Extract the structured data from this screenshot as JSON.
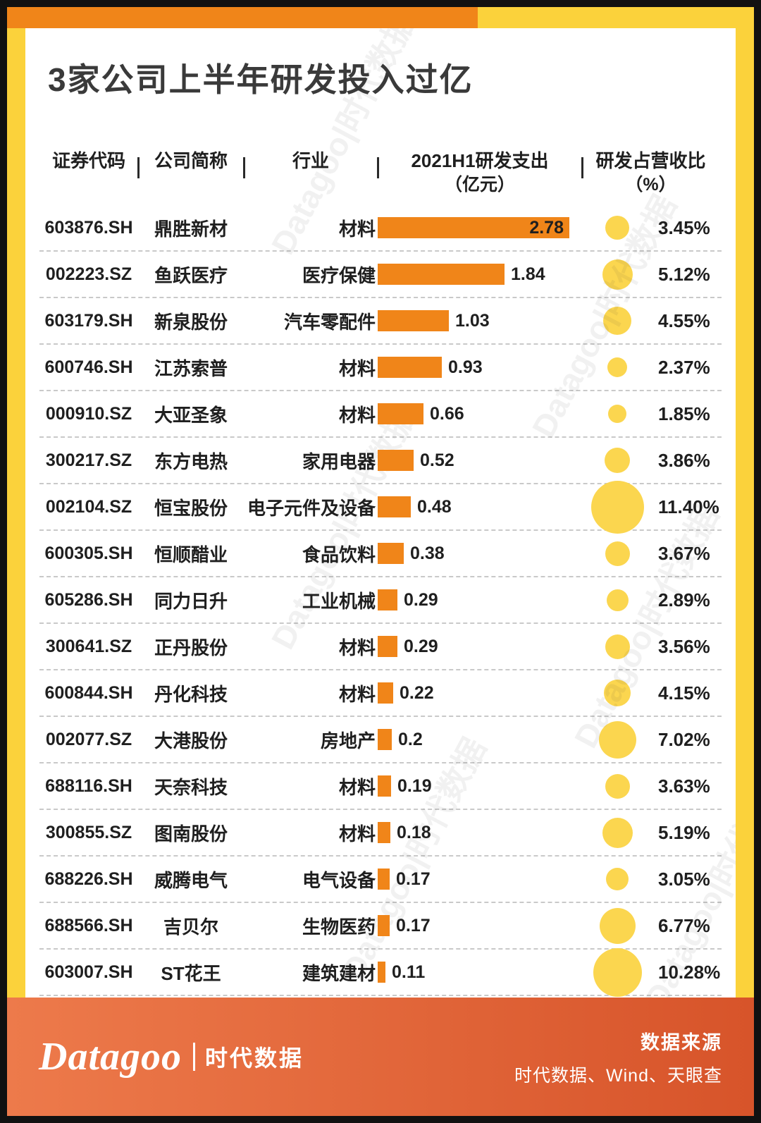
{
  "title": "3家公司上半年研发投入过亿",
  "watermark": {
    "text": "Datagoo|时代数据"
  },
  "columns": {
    "code": "证券代码",
    "name": "公司简称",
    "industry": "行业",
    "rd_line1": "2021H1研发支出",
    "rd_line2": "（亿元）",
    "ratio_line1": "研发占营收比",
    "ratio_line2": "（%）"
  },
  "chart_data": {
    "type": "bar",
    "title": "3家公司上半年研发投入过亿",
    "xlabel": "2021H1研发支出（亿元）",
    "ylabel": "",
    "xlim": [
      0,
      2.78
    ],
    "bar_color": "#F08519",
    "circle_color": "#FBD64F",
    "rows": [
      {
        "code": "603876.SH",
        "name": "鼎胜新材",
        "industry": "材料",
        "rd": 2.78,
        "rd_label": "2.78",
        "ratio": 3.45,
        "ratio_label": "3.45%"
      },
      {
        "code": "002223.SZ",
        "name": "鱼跃医疗",
        "industry": "医疗保健",
        "rd": 1.84,
        "rd_label": "1.84",
        "ratio": 5.12,
        "ratio_label": "5.12%"
      },
      {
        "code": "603179.SH",
        "name": "新泉股份",
        "industry": "汽车零配件",
        "rd": 1.03,
        "rd_label": "1.03",
        "ratio": 4.55,
        "ratio_label": "4.55%"
      },
      {
        "code": "600746.SH",
        "name": "江苏索普",
        "industry": "材料",
        "rd": 0.93,
        "rd_label": "0.93",
        "ratio": 2.37,
        "ratio_label": "2.37%"
      },
      {
        "code": "000910.SZ",
        "name": "大亚圣象",
        "industry": "材料",
        "rd": 0.66,
        "rd_label": "0.66",
        "ratio": 1.85,
        "ratio_label": "1.85%"
      },
      {
        "code": "300217.SZ",
        "name": "东方电热",
        "industry": "家用电器",
        "rd": 0.52,
        "rd_label": "0.52",
        "ratio": 3.86,
        "ratio_label": "3.86%"
      },
      {
        "code": "002104.SZ",
        "name": "恒宝股份",
        "industry": "电子元件及设备",
        "rd": 0.48,
        "rd_label": "0.48",
        "ratio": 11.4,
        "ratio_label": "11.40%"
      },
      {
        "code": "600305.SH",
        "name": "恒顺醋业",
        "industry": "食品饮料",
        "rd": 0.38,
        "rd_label": "0.38",
        "ratio": 3.67,
        "ratio_label": "3.67%"
      },
      {
        "code": "605286.SH",
        "name": "同力日升",
        "industry": "工业机械",
        "rd": 0.29,
        "rd_label": "0.29",
        "ratio": 2.89,
        "ratio_label": "2.89%"
      },
      {
        "code": "300641.SZ",
        "name": "正丹股份",
        "industry": "材料",
        "rd": 0.29,
        "rd_label": "0.29",
        "ratio": 3.56,
        "ratio_label": "3.56%"
      },
      {
        "code": "600844.SH",
        "name": "丹化科技",
        "industry": "材料",
        "rd": 0.22,
        "rd_label": "0.22",
        "ratio": 4.15,
        "ratio_label": "4.15%"
      },
      {
        "code": "002077.SZ",
        "name": "大港股份",
        "industry": "房地产",
        "rd": 0.2,
        "rd_label": "0.2",
        "ratio": 7.02,
        "ratio_label": "7.02%"
      },
      {
        "code": "688116.SH",
        "name": "天奈科技",
        "industry": "材料",
        "rd": 0.19,
        "rd_label": "0.19",
        "ratio": 3.63,
        "ratio_label": "3.63%"
      },
      {
        "code": "300855.SZ",
        "name": "图南股份",
        "industry": "材料",
        "rd": 0.18,
        "rd_label": "0.18",
        "ratio": 5.19,
        "ratio_label": "5.19%"
      },
      {
        "code": "688226.SH",
        "name": "威腾电气",
        "industry": "电气设备",
        "rd": 0.17,
        "rd_label": "0.17",
        "ratio": 3.05,
        "ratio_label": "3.05%"
      },
      {
        "code": "688566.SH",
        "name": "吉贝尔",
        "industry": "生物医药",
        "rd": 0.17,
        "rd_label": "0.17",
        "ratio": 6.77,
        "ratio_label": "6.77%"
      },
      {
        "code": "603007.SH",
        "name": "ST花王",
        "industry": "建筑建材",
        "rd": 0.11,
        "rd_label": "0.11",
        "ratio": 10.28,
        "ratio_label": "10.28%"
      }
    ]
  },
  "footer": {
    "logo_en": "Datagoo",
    "logo_cn": "时代数据",
    "source_title": "数据来源",
    "source_text": "时代数据、Wind、天眼查"
  }
}
